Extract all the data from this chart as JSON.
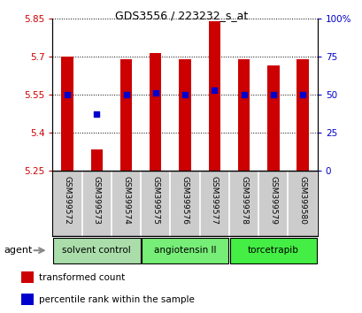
{
  "title": "GDS3556 / 223232_s_at",
  "samples": [
    "GSM399572",
    "GSM399573",
    "GSM399574",
    "GSM399575",
    "GSM399576",
    "GSM399577",
    "GSM399578",
    "GSM399579",
    "GSM399580"
  ],
  "bar_values": [
    5.7,
    5.335,
    5.69,
    5.715,
    5.69,
    5.84,
    5.69,
    5.665,
    5.69
  ],
  "percentile_values": [
    50,
    37,
    50,
    51,
    50,
    53,
    50,
    50,
    50
  ],
  "ymin": 5.25,
  "ymax": 5.85,
  "yticks": [
    5.25,
    5.4,
    5.55,
    5.7,
    5.85
  ],
  "ytick_labels": [
    "5.25",
    "5.4",
    "5.55",
    "5.7",
    "5.85"
  ],
  "y2ticks": [
    0,
    25,
    50,
    75,
    100
  ],
  "y2tick_labels": [
    "0",
    "25",
    "50",
    "75",
    "100%"
  ],
  "bar_color": "#cc0000",
  "bar_bottom": 5.25,
  "dot_color": "#0000cc",
  "dot_size": 25,
  "groups": [
    {
      "label": "solvent control",
      "n": 3,
      "color": "#aaddaa"
    },
    {
      "label": "angiotensin II",
      "n": 3,
      "color": "#77ee77"
    },
    {
      "label": "torcetrapib",
      "n": 3,
      "color": "#44ee44"
    }
  ],
  "agent_label": "agent",
  "legend_items": [
    {
      "label": "transformed count",
      "color": "#cc0000"
    },
    {
      "label": "percentile rank within the sample",
      "color": "#0000cc"
    }
  ],
  "left_tick_color": "#cc0000",
  "right_tick_color": "#0000cc",
  "background_color": "#ffffff",
  "plot_bg": "#ffffff",
  "cell_bg": "#cccccc",
  "bar_width": 0.4,
  "grid_dotted_color": "#555555"
}
